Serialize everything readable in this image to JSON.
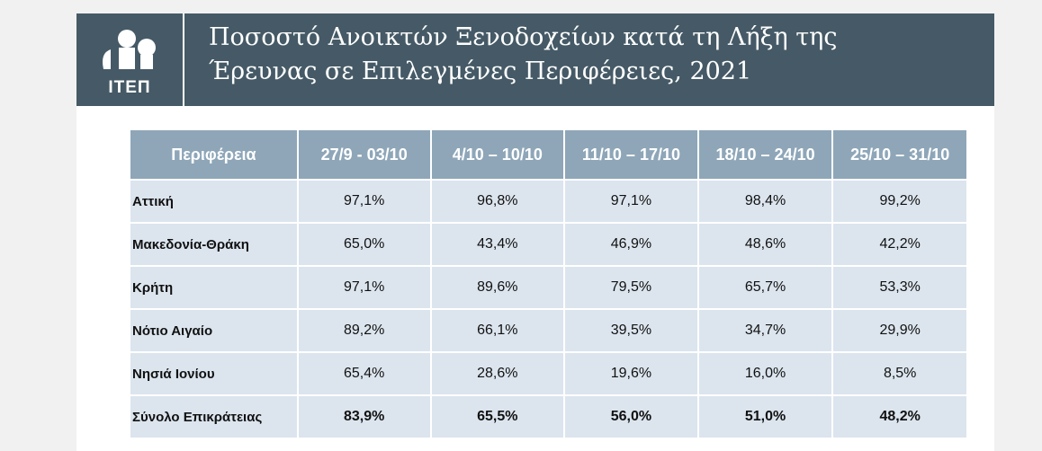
{
  "header": {
    "logo": "ΙΤΕΠ",
    "title_lines": [
      "Ποσοστό Ανοικτών Ξενοδοχείων κατά τη Λήξη της",
      "Έρευνας σε Επιλεγμένες Περιφέρειες, 2021"
    ]
  },
  "table": {
    "columns": [
      "Περιφέρεια",
      "27/9 - 03/10",
      "4/10 – 10/10",
      "11/10 – 17/10",
      "18/10 – 24/10",
      "25/10 – 31/10"
    ],
    "rows": [
      [
        "Αττική",
        "97,1%",
        "96,8%",
        "97,1%",
        "98,4%",
        "99,2%"
      ],
      [
        "Μακεδονία-Θράκη",
        "65,0%",
        "43,4%",
        "46,9%",
        "48,6%",
        "42,2%"
      ],
      [
        "Κρήτη",
        "97,1%",
        "89,6%",
        "79,5%",
        "65,7%",
        "53,3%"
      ],
      [
        "Νότιο Αιγαίο",
        "89,2%",
        "66,1%",
        "39,5%",
        "34,7%",
        "29,9%"
      ],
      [
        "Νησιά Ιονίου",
        "65,4%",
        "28,6%",
        "19,6%",
        "16,0%",
        "8,5%"
      ],
      [
        "Σύνολο Επικράτειας",
        "83,9%",
        "65,5%",
        "56,0%",
        "51,0%",
        "48,2%"
      ]
    ]
  }
}
